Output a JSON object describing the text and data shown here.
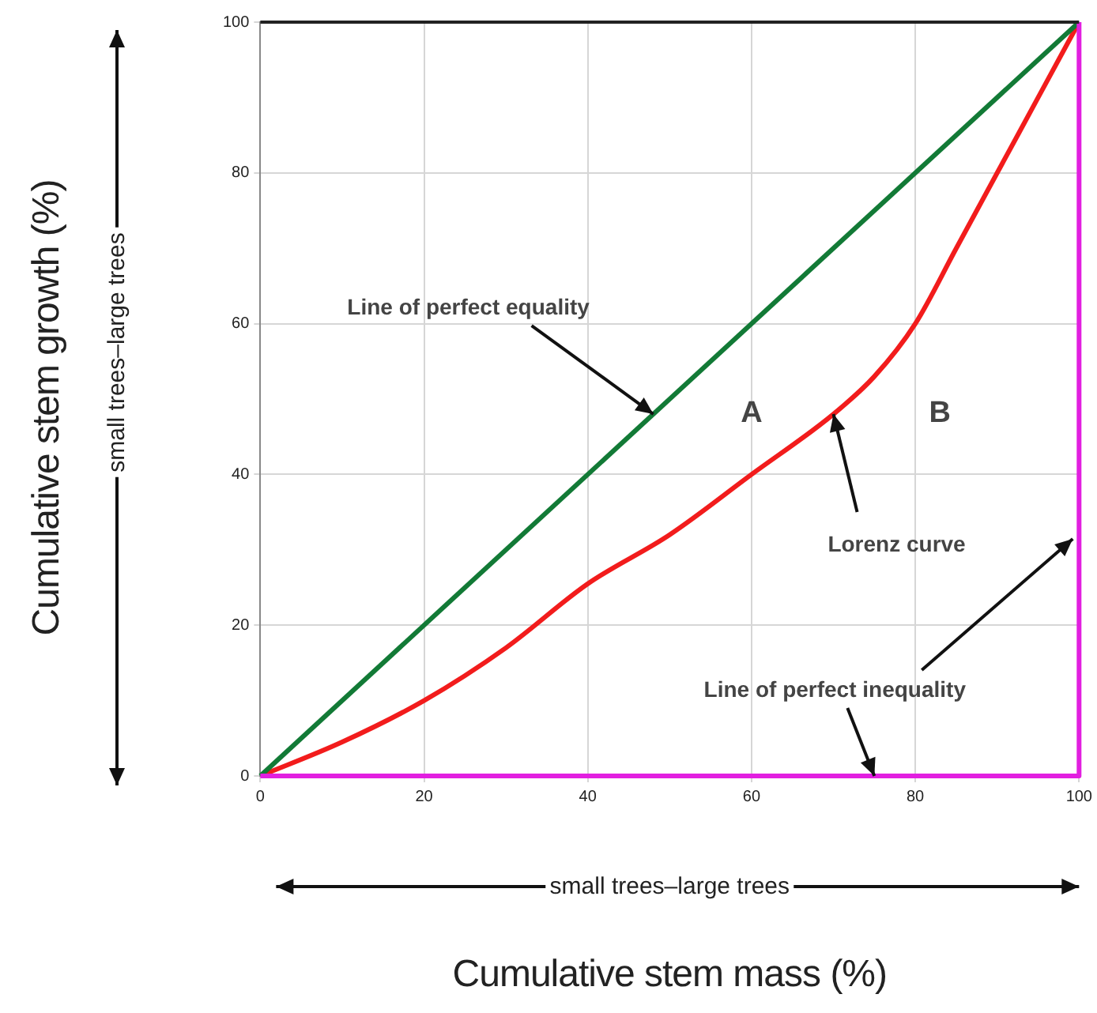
{
  "chart_data": {
    "type": "line",
    "xlabel": "Cumulative stem mass (%)",
    "ylabel": "Cumulative stem growth (%)",
    "xlim": [
      0,
      100
    ],
    "ylim": [
      0,
      100
    ],
    "xticks": [
      0,
      20,
      40,
      60,
      80,
      100
    ],
    "yticks": [
      0,
      20,
      40,
      60,
      80,
      100
    ],
    "grid": true,
    "line_style": "solid",
    "marker": "none",
    "series": [
      {
        "color": "#e21fe0",
        "x": [
          0,
          100,
          100
        ],
        "values": [
          0,
          0,
          100
        ]
      },
      {
        "color": "#127a36",
        "x": [
          0,
          100
        ],
        "values": [
          0,
          100
        ]
      },
      {
        "color": "#f21c1c",
        "x": [
          0,
          10,
          20,
          30,
          40,
          50,
          60,
          70,
          75,
          80,
          85,
          90,
          95,
          100
        ],
        "values": [
          0,
          4.5,
          10,
          17,
          25.5,
          32,
          40,
          48,
          53,
          60,
          70,
          80,
          90,
          100
        ]
      }
    ],
    "annotations": [
      {
        "text": "Line of perfect equality",
        "x": 48,
        "y": 48
      },
      "A",
      "B",
      {
        "text": "Lorenz curve",
        "x": 70,
        "y": 48
      },
      {
        "text": "Line of perfect inequality",
        "x": 75,
        "y": 0
      },
      "small trees–large trees",
      "small trees–large trees"
    ]
  }
}
